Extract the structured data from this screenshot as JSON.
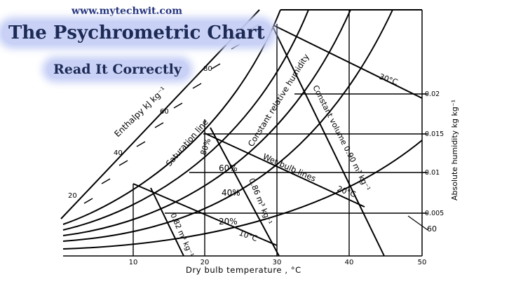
{
  "header": {
    "site_url": "www.mytechwit.com",
    "title": "The Psychrometric Chart",
    "subtitle": "Read It Correctly"
  },
  "chart": {
    "x_axis_label": "Dry bulb temperature ,  °C",
    "x_ticks": [
      "10",
      "20",
      "30",
      "40",
      "50"
    ],
    "y_axis_label": "Absolute humidity kg kg⁻¹",
    "y_ticks": [
      "0.005",
      "0.01",
      "0.015",
      "0.02"
    ],
    "enthalpy_label": "Enthalpy kJ kg⁻¹",
    "enthalpy_ticks": [
      "20",
      "40",
      "60",
      "80"
    ],
    "labels": {
      "saturation_line": "Saturation line",
      "constant_rh": "Constant relative humidity",
      "constant_volume": "Constant volume 0.90 m³ kg⁻¹",
      "wet_bulb_lines": "Wet bulb lines",
      "wb_30": "30°C",
      "wb_20": "20°C",
      "wb_10": "10°C",
      "enthalpy_60": "60",
      "rh_80": "80%",
      "rh_60": "60%",
      "rh_40": "40%",
      "rh_20": "20%",
      "vol_086": "0.86 m³ kg⁻¹",
      "vol_082": "0.82 m³ kg⁻¹"
    }
  }
}
